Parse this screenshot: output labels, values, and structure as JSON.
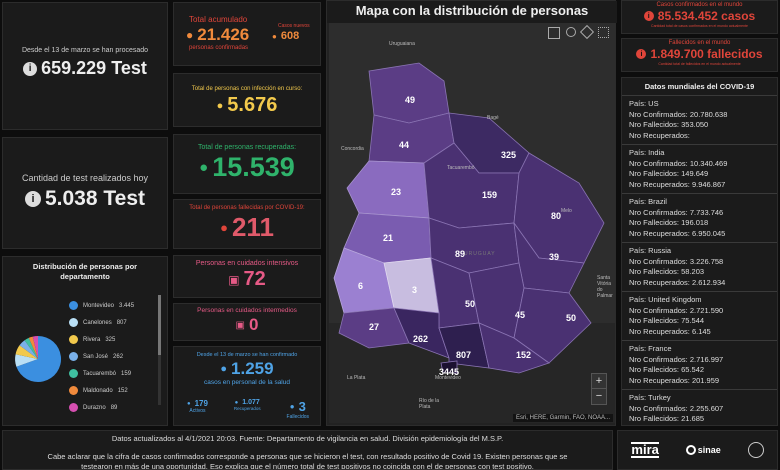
{
  "left": {
    "since_label": "Desde el 13 de marzo se han procesado",
    "since_value": "659.229 Test",
    "today_label": "Cantidad de test realizados hoy",
    "today_value": "5.038 Test",
    "dept_title": "Distribución de personas por departamento",
    "departments": [
      {
        "name": "Montevideo",
        "value": "3.445",
        "color": "#3b8fe0"
      },
      {
        "name": "Canelones",
        "value": "807",
        "color": "#b9dff5"
      },
      {
        "name": "Rivera",
        "value": "325",
        "color": "#f2c94c"
      },
      {
        "name": "San José",
        "value": "262",
        "color": "#7ab0e8"
      },
      {
        "name": "Tacuarembó",
        "value": "159",
        "color": "#3fbfa0"
      },
      {
        "name": "Maldonado",
        "value": "152",
        "color": "#f08a3c"
      },
      {
        "name": "Durazno",
        "value": "89",
        "color": "#d64fb0"
      }
    ]
  },
  "mid": {
    "total_label": "Total acumulado",
    "total_value": "21.426",
    "total_sub": "personas confirmadas",
    "new_label": "Casos nuevos",
    "new_value": "608",
    "active_label": "Total de personas con infección en curso:",
    "active_value": "5.676",
    "recovered_label": "Total de personas recuperadas:",
    "recovered_value": "15.539",
    "deceased_label": "Total de personas fallecidas por COVID-19:",
    "deceased_value": "211",
    "icu_label": "Personas en cuidados intensivos",
    "icu_value": "72",
    "inter_label": "Personas en cuidados intermedios",
    "inter_value": "0",
    "health_top": "Desde el 13 de marzo se han confirmado",
    "health_value": "1.259",
    "health_sub": "casos en personal de la salud",
    "health_active_value": "179",
    "health_active_label": "Activos",
    "health_recovered_value": "1.077",
    "health_recovered_label": "Recuperados",
    "health_deceased_value": "3",
    "health_deceased_label": "Fallecidos"
  },
  "map": {
    "title": "Mapa con la distribución de personas",
    "attribution": "Esri, HERE, Garmin, FAO, NOAA...",
    "places": [
      "Uruguaiana",
      "Concordia",
      "Tacuarembó",
      "URUGUAY",
      "Melo",
      "La Plata",
      "Río de la Plata",
      "Santa Vitória do Palmar",
      "Montevideo",
      "Bagé"
    ],
    "counts": [
      "49",
      "44",
      "325",
      "23",
      "159",
      "80",
      "21",
      "89",
      "39",
      "6",
      "3",
      "50",
      "45",
      "50",
      "27",
      "262",
      "807",
      "152",
      "3445"
    ],
    "zoom_in": "+",
    "zoom_out": "−"
  },
  "right": {
    "world_cases_label": "Casos confirmados en el mundo",
    "world_cases_value": "85.534.452 casos",
    "world_cases_note": "Cantidad total de casos confirmados en el mundo actualmente",
    "world_deaths_label": "Fallecidos en el mundo",
    "world_deaths_value": "1.849.700 fallecidos",
    "world_deaths_note": "Cantidad total de fallecidos en el mundo actualmente",
    "world_title": "Datos mundiales del COVID-19",
    "countries": [
      {
        "pais": "País: US",
        "conf": "Nro Confirmados: 20.780.638",
        "fall": "Nro Fallecidos: 353.050",
        "rec": "Nro Recuperados:"
      },
      {
        "pais": "País: India",
        "conf": "Nro Confirmados: 10.340.469",
        "fall": "Nro Fallecidos: 149.649",
        "rec": "Nro Recuperados: 9.946.867"
      },
      {
        "pais": "País: Brazil",
        "conf": "Nro Confirmados: 7.733.746",
        "fall": "Nro Fallecidos: 196.018",
        "rec": "Nro Recuperados: 6.950.045"
      },
      {
        "pais": "País: Russia",
        "conf": "Nro Confirmados: 3.226.758",
        "fall": "Nro Fallecidos: 58.203",
        "rec": "Nro Recuperados: 2.612.934"
      },
      {
        "pais": "País: United Kingdom",
        "conf": "Nro Confirmados: 2.721.590",
        "fall": "Nro Fallecidos: 75.544",
        "rec": "Nro Recuperados: 6.145"
      },
      {
        "pais": "País: France",
        "conf": "Nro Confirmados: 2.716.997",
        "fall": "Nro Fallecidos: 65.542",
        "rec": "Nro Recuperados: 201.959"
      },
      {
        "pais": "País: Turkey",
        "conf": "Nro Confirmados: 2.255.607",
        "fall": "Nro Fallecidos: 21.685",
        "rec": ""
      }
    ]
  },
  "footer": {
    "updated": "Datos actualizados al 4/1/2021 20:03. Fuente: Departamento de vigilancia en salud. División epidemiología del M.S.P.",
    "note1": "Cabe aclarar que la cifra de casos confirmados corresponde a personas que se hicieron el test, con resultado positivo de Covid 19. Existen personas que se",
    "note2": "testearon en más de una oportunidad. Eso explica que el número total de test positivos no coincida con el de personas con test positivo.",
    "logo1": "mira",
    "logo2": "sinae"
  }
}
